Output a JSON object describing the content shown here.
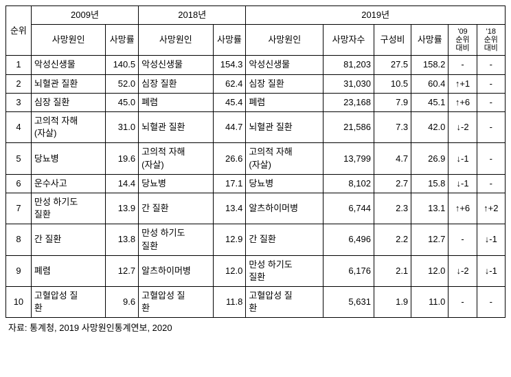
{
  "header": {
    "rank": "순위",
    "y2009": "2009년",
    "y2018": "2018년",
    "y2019": "2019년",
    "cause": "사망원인",
    "rate": "사망률",
    "deaths": "사망자수",
    "share": "구성비",
    "cmp09": "'09\n순위\n대비",
    "cmp18": "'18\n순위\n대비"
  },
  "rows": [
    {
      "rank": "1",
      "c09": "악성신생물",
      "r09": "140.5",
      "c18": "악성신생물",
      "r18": "154.3",
      "c19": "악성신생물",
      "d19": "81,203",
      "s19": "27.5",
      "rr19": "158.2",
      "cmp09": "-",
      "cmp18": "-"
    },
    {
      "rank": "2",
      "c09": "뇌혈관 질환",
      "r09": "52.0",
      "c18": "심장 질환",
      "r18": "62.4",
      "c19": "심장 질환",
      "d19": "31,030",
      "s19": "10.5",
      "rr19": "60.4",
      "cmp09": "↑+1",
      "cmp18": "-"
    },
    {
      "rank": "3",
      "c09": "심장 질환",
      "r09": "45.0",
      "c18": "폐렴",
      "r18": "45.4",
      "c19": "폐렴",
      "d19": "23,168",
      "s19": "7.9",
      "rr19": "45.1",
      "cmp09": "↑+6",
      "cmp18": "-"
    },
    {
      "rank": "4",
      "c09": "고의적 자해\n(자살)",
      "r09": "31.0",
      "c18": "뇌혈관 질환",
      "r18": "44.7",
      "c19": "뇌혈관 질환",
      "d19": "21,586",
      "s19": "7.3",
      "rr19": "42.0",
      "cmp09": "↓-2",
      "cmp18": "-"
    },
    {
      "rank": "5",
      "c09": "당뇨병",
      "r09": "19.6",
      "c18": "고의적 자해\n(자살)",
      "r18": "26.6",
      "c19": "고의적 자해\n(자살)",
      "d19": "13,799",
      "s19": "4.7",
      "rr19": "26.9",
      "cmp09": "↓-1",
      "cmp18": "-"
    },
    {
      "rank": "6",
      "c09": "운수사고",
      "r09": "14.4",
      "c18": "당뇨병",
      "r18": "17.1",
      "c19": "당뇨병",
      "d19": "8,102",
      "s19": "2.7",
      "rr19": "15.8",
      "cmp09": "↓-1",
      "cmp18": "-"
    },
    {
      "rank": "7",
      "c09": "만성 하기도\n질환",
      "r09": "13.9",
      "c18": "간 질환",
      "r18": "13.4",
      "c19": "알츠하이머병",
      "d19": "6,744",
      "s19": "2.3",
      "rr19": "13.1",
      "cmp09": "↑+6",
      "cmp18": "↑+2"
    },
    {
      "rank": "8",
      "c09": "간 질환",
      "r09": "13.8",
      "c18": "만성 하기도\n질환",
      "r18": "12.9",
      "c19": "간 질환",
      "d19": "6,496",
      "s19": "2.2",
      "rr19": "12.7",
      "cmp09": "-",
      "cmp18": "↓-1"
    },
    {
      "rank": "9",
      "c09": "폐렴",
      "r09": "12.7",
      "c18": "알츠하이머병",
      "r18": "12.0",
      "c19": "만성 하기도\n질환",
      "d19": "6,176",
      "s19": "2.1",
      "rr19": "12.0",
      "cmp09": "↓-2",
      "cmp18": "↓-1"
    },
    {
      "rank": "10",
      "c09": "고혈압성   질\n환",
      "r09": "9.6",
      "c18": "고혈압성   질\n환",
      "r18": "11.8",
      "c19": "고혈압성   질\n환",
      "d19": "5,631",
      "s19": "1.9",
      "rr19": "11.0",
      "cmp09": "-",
      "cmp18": "-"
    }
  ],
  "source": "자료: 통계청, 2019 사망원인통계연보, 2020"
}
